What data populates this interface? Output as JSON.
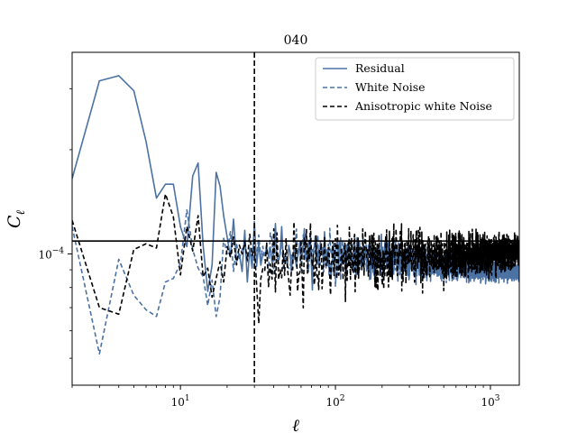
{
  "chart_data": {
    "type": "line",
    "title": "040",
    "xlabel": "ℓ",
    "ylabel": "C",
    "ylabel_subscript": "ℓ",
    "xscale": "log",
    "yscale": "log",
    "xlim": [
      2,
      1536
    ],
    "ylim": [
      4.18e-05,
      0.000382
    ],
    "xticks": [
      {
        "value": 10,
        "base": "10",
        "exp": "1"
      },
      {
        "value": 100,
        "base": "10",
        "exp": "2"
      },
      {
        "value": 1000,
        "base": "10",
        "exp": "3"
      }
    ],
    "yticks": [
      {
        "value": 0.0001,
        "base": "10",
        "exp": "−4"
      }
    ],
    "hline": {
      "y": 0.000109,
      "color": "#000000"
    },
    "vline": {
      "x": 30,
      "color": "#000000",
      "style": "dashed"
    },
    "legend_position": "top-right",
    "series": [
      {
        "name": "Residual",
        "color": "#4c72a4",
        "style": "solid",
        "points": [
          [
            2,
            0.000165
          ],
          [
            3,
            0.000316
          ],
          [
            4,
            0.000327
          ],
          [
            5,
            0.000296
          ],
          [
            6,
            0.000211
          ],
          [
            7,
            0.000145
          ],
          [
            8,
            0.000159
          ],
          [
            9,
            0.000159
          ],
          [
            10,
            0.00012
          ],
          [
            11,
            0.000105
          ],
          [
            12,
            0.000168
          ],
          [
            13,
            0.000183
          ],
          [
            14,
            0.000106
          ],
          [
            15,
            7.8e-05
          ],
          [
            16,
            9.3e-05
          ],
          [
            17,
            0.000172
          ],
          [
            18,
            0.000157
          ],
          [
            19,
            0.000129
          ],
          [
            20,
            0.000112
          ],
          [
            21,
            9.8e-05
          ],
          [
            22,
            0.000126
          ],
          [
            23,
            9.5e-05
          ],
          [
            24,
            0.0001
          ],
          [
            25,
            8.9e-05
          ],
          [
            26,
            0.000117
          ],
          [
            27,
            8.3e-05
          ],
          [
            28,
            0.000104
          ],
          [
            29,
            9.1e-05
          ],
          [
            30,
            0.000124
          ]
        ],
        "noise": {
          "from": 30,
          "to": 1536,
          "low_start": 0.000105,
          "low_end": 8.85e-05,
          "amp_start": 0.17,
          "amp_end": 0.045,
          "seed": 11
        }
      },
      {
        "name": "White Noise",
        "color": "#4c72a4",
        "style": "dashed",
        "points": [
          [
            2,
            0.00012
          ],
          [
            3,
            5.15e-05
          ],
          [
            4,
            9.65e-05
          ],
          [
            5,
            7.6e-05
          ],
          [
            6,
            6.9e-05
          ],
          [
            7,
            6.6e-05
          ],
          [
            8,
            8.3e-05
          ],
          [
            9,
            8.5e-05
          ],
          [
            10,
            9.4e-05
          ],
          [
            11,
            0.000134
          ],
          [
            12,
            0.000103
          ],
          [
            13,
            9.1e-05
          ],
          [
            14,
            8.6e-05
          ],
          [
            15,
            7.1e-05
          ],
          [
            16,
            8.4e-05
          ],
          [
            17,
            6.6e-05
          ],
          [
            18,
            7.5e-05
          ],
          [
            19,
            0.000111
          ],
          [
            20,
            0.0001
          ],
          [
            21,
            0.000116
          ],
          [
            22,
            8.9e-05
          ],
          [
            23,
            0.000107
          ],
          [
            24,
            9.7e-05
          ],
          [
            25,
            0.000103
          ],
          [
            26,
            0.000106
          ],
          [
            27,
            9.5e-05
          ],
          [
            28,
            0.000101
          ],
          [
            29,
            9.8e-05
          ],
          [
            30,
            0.000104
          ]
        ],
        "noise": {
          "from": 30,
          "to": 1536,
          "low_start": 0.0001035,
          "low_end": 8.85e-05,
          "amp_start": 0.16,
          "amp_end": 0.04,
          "seed": 23
        }
      },
      {
        "name": "Anisotropic white Noise",
        "color": "#000000",
        "style": "dashed",
        "points": [
          [
            2,
            0.000125
          ],
          [
            3,
            7e-05
          ],
          [
            4,
            6.7e-05
          ],
          [
            5,
            0.000103
          ],
          [
            6,
            0.000107
          ],
          [
            7,
            0.000104
          ],
          [
            8,
            0.000149
          ],
          [
            9,
            0.000128
          ],
          [
            10,
            8.7e-05
          ],
          [
            11,
            0.00012
          ],
          [
            12,
            0.000102
          ],
          [
            13,
            0.000129
          ],
          [
            14,
            8.6e-05
          ],
          [
            15,
            9.1e-05
          ],
          [
            16,
            7.5e-05
          ],
          [
            17,
            8.5e-05
          ],
          [
            18,
            9.5e-05
          ],
          [
            19,
            8.3e-05
          ],
          [
            20,
            0.000105
          ],
          [
            21,
            9.8e-05
          ],
          [
            22,
            0.000112
          ],
          [
            23,
            9.3e-05
          ],
          [
            24,
            0.000106
          ],
          [
            25,
            0.0001
          ],
          [
            26,
            0.000108
          ],
          [
            27,
            9.6e-05
          ],
          [
            28,
            0.000114
          ],
          [
            29,
            9.9e-05
          ],
          [
            30,
            0.000105
          ]
        ],
        "noise": {
          "from": 30,
          "to": 1536,
          "low_start": 9.4e-05,
          "low_end": 0.000102,
          "amp_start": 0.26,
          "amp_end": 0.09,
          "seed": 37
        }
      }
    ]
  }
}
